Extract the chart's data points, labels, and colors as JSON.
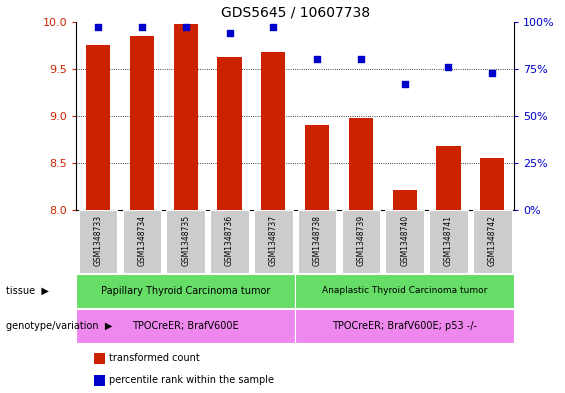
{
  "title": "GDS5645 / 10607738",
  "samples": [
    "GSM1348733",
    "GSM1348734",
    "GSM1348735",
    "GSM1348736",
    "GSM1348737",
    "GSM1348738",
    "GSM1348739",
    "GSM1348740",
    "GSM1348741",
    "GSM1348742"
  ],
  "transformed_count": [
    9.75,
    9.85,
    9.97,
    9.63,
    9.68,
    8.9,
    8.98,
    8.22,
    8.68,
    8.55
  ],
  "percentile_rank": [
    97,
    97,
    97,
    94,
    97,
    80,
    80,
    67,
    76,
    73
  ],
  "bar_color": "#cc2200",
  "dot_color": "#0000cc",
  "ylim": [
    8.0,
    10.0
  ],
  "y2lim": [
    0,
    100
  ],
  "yticks": [
    8.0,
    8.5,
    9.0,
    9.5,
    10.0
  ],
  "y2ticks": [
    0,
    25,
    50,
    75,
    100
  ],
  "tissue_labels": [
    "Papillary Thyroid Carcinoma tumor",
    "Anaplastic Thyroid Carcinoma tumor"
  ],
  "tissue_color": "#66dd66",
  "genotype_labels": [
    "TPOCreER; BrafV600E",
    "TPOCreER; BrafV600E; p53 -/-"
  ],
  "genotype_color": "#ee88ee",
  "tissue_row_label": "tissue",
  "genotype_row_label": "genotype/variation",
  "legend_bar": "transformed count",
  "legend_dot": "percentile rank within the sample",
  "background_color": "#ffffff",
  "tick_label_color_left": "#cc2200",
  "tick_label_color_right": "#0000cc",
  "sample_box_color": "#cccccc",
  "split_at": 5
}
